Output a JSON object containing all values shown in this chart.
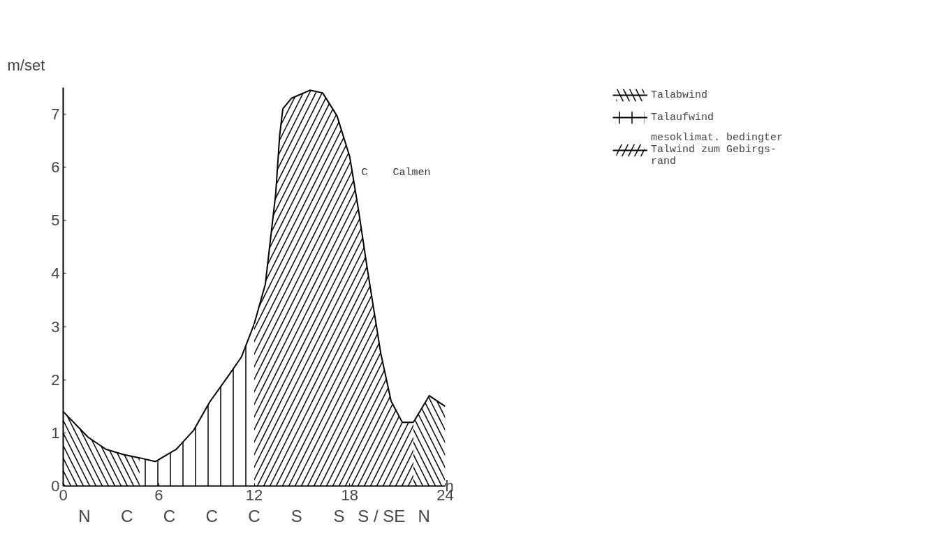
{
  "chart_data": {
    "type": "area",
    "ylabel": "m/set",
    "xlabel": "h",
    "x": [
      0,
      1.56,
      2.7,
      3.8,
      4.8,
      5.8,
      7.1,
      8.2,
      9.2,
      10.3,
      11.2,
      12,
      12.7,
      13.35,
      13.6,
      13.8,
      14.35,
      15.5,
      16.3,
      17.2,
      18,
      18.55,
      19.1,
      19.95,
      20.6,
      21.3,
      22,
      23,
      24
    ],
    "series": [
      {
        "name": "Talabwind",
        "color": "#000000",
        "values": [
          1.4,
          0.92,
          0.69,
          0.59,
          0.53,
          null,
          null,
          null,
          null,
          null,
          null,
          null,
          null,
          null,
          null,
          null,
          null,
          null,
          null,
          null,
          null,
          null,
          null,
          null,
          null,
          null,
          1.2,
          1.7,
          1.5
        ]
      },
      {
        "name": "Talaufwind",
        "color": "#000000",
        "values": [
          null,
          null,
          null,
          null,
          0.53,
          0.46,
          0.69,
          1.05,
          1.58,
          2.04,
          2.43,
          3.05,
          null,
          null,
          null,
          null,
          null,
          null,
          null,
          null,
          null,
          null,
          null,
          null,
          null,
          null,
          null,
          null,
          null
        ]
      },
      {
        "name": "mesoklimat. bedingter\nTalwind zum Gebirgs-\nrand",
        "color": "#000000",
        "values": [
          null,
          null,
          null,
          null,
          null,
          null,
          null,
          null,
          null,
          null,
          null,
          3.05,
          3.8,
          5.5,
          6.6,
          7.1,
          7.3,
          7.45,
          7.4,
          6.97,
          6.2,
          5.2,
          4.1,
          2.5,
          1.6,
          1.2,
          1.2,
          null,
          null
        ]
      }
    ],
    "xlim": [
      0,
      24
    ],
    "ylim": [
      0,
      7.5
    ],
    "xticks": [
      0,
      6,
      12,
      18,
      24
    ],
    "yticks": [
      0,
      1,
      2,
      3,
      4,
      5,
      6,
      7
    ],
    "grid": false,
    "legend": "top right",
    "annotations": [
      "C",
      "Calmen",
      "N",
      "C",
      "C",
      "C",
      "C",
      "S",
      "S",
      "S / SE",
      "N"
    ]
  }
}
